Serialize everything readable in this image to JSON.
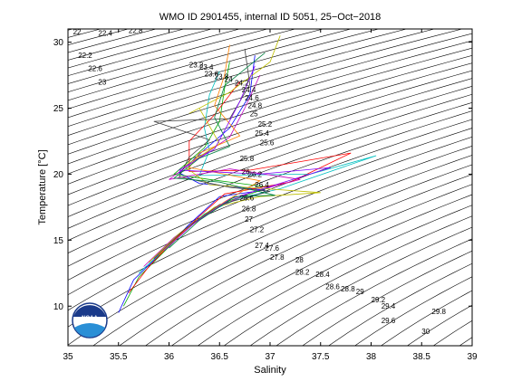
{
  "chart_data": {
    "type": "line",
    "title": "WMO ID 2901455, internal ID 5051, 25−Oct−2018",
    "xlabel": "Salinity",
    "ylabel": "Temperature [°C]",
    "xlim": [
      35,
      39
    ],
    "ylim": [
      7,
      31
    ],
    "xticks": [
      "35",
      "35.5",
      "36",
      "36.5",
      "37",
      "37.5",
      "38",
      "38.5",
      "39"
    ],
    "yticks": [
      "10",
      "15",
      "20",
      "25",
      "30"
    ],
    "grid": false,
    "legend": "none",
    "logo_text": "NOAA",
    "isopycnal_labels": [
      "22",
      "22.2",
      "22.4",
      "22.6",
      "22.8",
      "23",
      "23.2",
      "23.4",
      "23.6",
      "23.8",
      "24",
      "24.2",
      "24.4",
      "24.6",
      "24.8",
      "25",
      "25.2",
      "25.4",
      "25.6",
      "25.8",
      "26",
      "26.2",
      "26.4",
      "26.6",
      "26.8",
      "27",
      "27.2",
      "27.4",
      "27.6",
      "27.8",
      "28",
      "28.2",
      "28.4",
      "28.6",
      "28.8",
      "29",
      "29.2",
      "29.4",
      "29.6",
      "29.8",
      "30"
    ],
    "isopycnal_label_points": [
      {
        "label": "22",
        "s": 35.05,
        "t": 30.6
      },
      {
        "label": "22.2",
        "s": 35.1,
        "t": 28.8
      },
      {
        "label": "22.4",
        "s": 35.3,
        "t": 30.5
      },
      {
        "label": "22.6",
        "s": 35.2,
        "t": 27.8
      },
      {
        "label": "22.8",
        "s": 35.6,
        "t": 30.7
      },
      {
        "label": "23",
        "s": 35.3,
        "t": 26.8
      },
      {
        "label": "23.2",
        "s": 36.2,
        "t": 28.1
      },
      {
        "label": "23.4",
        "s": 36.3,
        "t": 27.9
      },
      {
        "label": "23.6",
        "s": 36.35,
        "t": 27.4
      },
      {
        "label": "23.8",
        "s": 36.45,
        "t": 27.2
      },
      {
        "label": "24",
        "s": 36.55,
        "t": 27.0
      },
      {
        "label": "24.2",
        "s": 36.65,
        "t": 26.7
      },
      {
        "label": "24.4",
        "s": 36.72,
        "t": 26.2
      },
      {
        "label": "24.6",
        "s": 36.75,
        "t": 25.6
      },
      {
        "label": "24.8",
        "s": 36.78,
        "t": 25.0
      },
      {
        "label": "25",
        "s": 36.8,
        "t": 24.4
      },
      {
        "label": "25.2",
        "s": 36.88,
        "t": 23.6
      },
      {
        "label": "25.4",
        "s": 36.85,
        "t": 22.9
      },
      {
        "label": "25.6",
        "s": 36.9,
        "t": 22.2
      },
      {
        "label": "25.8",
        "s": 36.7,
        "t": 21.0
      },
      {
        "label": "26",
        "s": 36.72,
        "t": 20.0
      },
      {
        "label": "26.2",
        "s": 36.78,
        "t": 19.8
      },
      {
        "label": "26.4",
        "s": 36.85,
        "t": 19.0
      },
      {
        "label": "26.6",
        "s": 36.7,
        "t": 18.0
      },
      {
        "label": "26.8",
        "s": 36.72,
        "t": 17.2
      },
      {
        "label": "27",
        "s": 36.75,
        "t": 16.4
      },
      {
        "label": "27.2",
        "s": 36.8,
        "t": 15.6
      },
      {
        "label": "27.4",
        "s": 36.85,
        "t": 14.4
      },
      {
        "label": "27.6",
        "s": 36.95,
        "t": 14.2
      },
      {
        "label": "27.8",
        "s": 37.0,
        "t": 13.5
      },
      {
        "label": "28",
        "s": 37.25,
        "t": 13.3
      },
      {
        "label": "28.2",
        "s": 37.25,
        "t": 12.4
      },
      {
        "label": "28.4",
        "s": 37.45,
        "t": 12.2
      },
      {
        "label": "28.6",
        "s": 37.55,
        "t": 11.3
      },
      {
        "label": "28.8",
        "s": 37.7,
        "t": 11.1
      },
      {
        "label": "29",
        "s": 37.85,
        "t": 10.9
      },
      {
        "label": "29.2",
        "s": 38.0,
        "t": 10.3
      },
      {
        "label": "29.4",
        "s": 38.1,
        "t": 9.8
      },
      {
        "label": "29.6",
        "s": 38.1,
        "t": 8.7
      },
      {
        "label": "29.8",
        "s": 38.6,
        "t": 9.4
      },
      {
        "label": "30",
        "s": 38.5,
        "t": 7.9
      }
    ],
    "profile_colors": [
      "#0000ff",
      "#00aa00",
      "#ff0000",
      "#00bfbf",
      "#bf00bf",
      "#bfbf00",
      "#404040",
      "#ff8000",
      "#8000ff",
      "#008040"
    ],
    "series": [
      {
        "points": [
          [
            35.5,
            9.5
          ],
          [
            35.65,
            12
          ],
          [
            35.95,
            14.2
          ],
          [
            36.2,
            16.2
          ],
          [
            36.5,
            18.3
          ],
          [
            36.95,
            18.8
          ],
          [
            36.3,
            19.3
          ],
          [
            36.1,
            20.1
          ],
          [
            36.3,
            21.5
          ],
          [
            36.6,
            23.5
          ],
          [
            36.8,
            26
          ],
          [
            36.85,
            29
          ]
        ]
      },
      {
        "points": [
          [
            35.55,
            10
          ],
          [
            35.7,
            12.2
          ],
          [
            36.0,
            14.5
          ],
          [
            36.25,
            16.4
          ],
          [
            36.6,
            18.0
          ],
          [
            37.0,
            19.0
          ],
          [
            36.4,
            19.6
          ],
          [
            36.05,
            20.0
          ],
          [
            36.35,
            22.0
          ],
          [
            36.5,
            24.0
          ],
          [
            36.55,
            26.5
          ],
          [
            36.6,
            28.5
          ]
        ]
      },
      {
        "points": [
          [
            35.6,
            11
          ],
          [
            35.8,
            13
          ],
          [
            36.05,
            15
          ],
          [
            36.3,
            16.8
          ],
          [
            36.55,
            18.5
          ],
          [
            37.2,
            19.4
          ],
          [
            37.8,
            21.6
          ],
          [
            36.8,
            20.3
          ],
          [
            36.2,
            20.2
          ],
          [
            36.2,
            22.5
          ],
          [
            36.45,
            24.5
          ],
          [
            36.7,
            27
          ]
        ]
      },
      {
        "points": [
          [
            35.7,
            12.5
          ],
          [
            36.0,
            14.6
          ],
          [
            36.35,
            17.0
          ],
          [
            36.7,
            18.2
          ],
          [
            37.1,
            18.9
          ],
          [
            38.05,
            21.4
          ],
          [
            37.4,
            20.0
          ],
          [
            36.3,
            19.9
          ],
          [
            36.4,
            21.8
          ],
          [
            36.35,
            23.5
          ],
          [
            36.4,
            26.0
          ],
          [
            36.5,
            27.8
          ]
        ]
      },
      {
        "points": [
          [
            35.75,
            13
          ],
          [
            36.05,
            15.2
          ],
          [
            36.4,
            17.2
          ],
          [
            36.8,
            18.6
          ],
          [
            37.3,
            19.6
          ],
          [
            36.6,
            20.4
          ],
          [
            36.0,
            19.6
          ],
          [
            36.25,
            21.0
          ],
          [
            36.6,
            22.8
          ],
          [
            36.75,
            25.0
          ],
          [
            36.9,
            27.5
          ]
        ]
      },
      {
        "points": [
          [
            35.8,
            13.3
          ],
          [
            36.1,
            15.5
          ],
          [
            36.45,
            17.5
          ],
          [
            36.9,
            18.3
          ],
          [
            37.5,
            18.6
          ],
          [
            36.4,
            19.2
          ],
          [
            36.15,
            20.6
          ],
          [
            36.5,
            22.3
          ],
          [
            36.3,
            25.0
          ],
          [
            36.2,
            24.6
          ],
          [
            36.6,
            26.2
          ],
          [
            37.0,
            28.5
          ],
          [
            37.1,
            30.5
          ]
        ]
      },
      {
        "points": [
          [
            35.85,
            13.6
          ],
          [
            36.15,
            15.8
          ],
          [
            36.5,
            17.7
          ],
          [
            37.0,
            18.7
          ],
          [
            36.6,
            19.0
          ],
          [
            36.1,
            19.8
          ],
          [
            36.2,
            21.3
          ],
          [
            36.4,
            22.6
          ],
          [
            35.85,
            24.0
          ],
          [
            36.6,
            24.2
          ],
          [
            36.8,
            26.8
          ],
          [
            36.75,
            29.5
          ]
        ]
      },
      {
        "points": [
          [
            35.9,
            13.9
          ],
          [
            36.2,
            16.0
          ],
          [
            36.55,
            17.9
          ],
          [
            36.9,
            19.5
          ],
          [
            36.2,
            20.5
          ],
          [
            36.3,
            21.6
          ],
          [
            36.7,
            22.9
          ],
          [
            36.45,
            25.2
          ],
          [
            36.55,
            27.5
          ],
          [
            36.6,
            29.8
          ]
        ]
      },
      {
        "points": [
          [
            35.95,
            14.2
          ],
          [
            36.25,
            16.3
          ],
          [
            36.6,
            18.1
          ],
          [
            37.6,
            20.5
          ],
          [
            36.9,
            20.0
          ],
          [
            36.1,
            20.3
          ],
          [
            36.45,
            21.9
          ],
          [
            36.55,
            23.3
          ],
          [
            36.7,
            25.5
          ],
          [
            36.85,
            28.2
          ]
        ]
      },
      {
        "points": [
          [
            36.0,
            14.4
          ],
          [
            36.3,
            16.5
          ],
          [
            36.65,
            18.3
          ],
          [
            37.05,
            18.4
          ],
          [
            36.5,
            19.4
          ],
          [
            36.05,
            19.7
          ],
          [
            36.3,
            21.2
          ],
          [
            36.6,
            22.1
          ],
          [
            36.45,
            24.3
          ],
          [
            36.55,
            26.7
          ],
          [
            36.95,
            29.2
          ]
        ]
      }
    ]
  }
}
